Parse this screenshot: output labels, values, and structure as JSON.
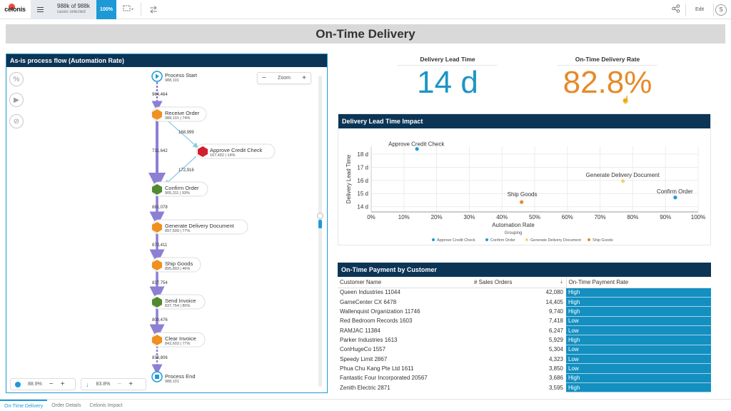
{
  "topbar": {
    "logo_text": "celonis",
    "selection_main": "988k of 988k",
    "selection_sub": "cases selected",
    "selection_pct": "100%",
    "edit_label": "Edit",
    "avatar_initial": "S"
  },
  "page_title": "On-Time Delivery",
  "flow": {
    "header": "As-is process flow (Automation Rate)",
    "zoom_label": "Zoom",
    "zoom_minus": "−",
    "zoom_plus": "+",
    "nodes": [
      {
        "name": "Process Start",
        "sub": "988,101",
        "shape": "start",
        "color": "#1d9ad6"
      },
      {
        "name": "Receive Order",
        "sub": "988,101 | 74%",
        "shape": "hex",
        "color": "#f0901e"
      },
      {
        "name": "Approve Credit Check",
        "sub": "167,492 | 14%",
        "shape": "hex",
        "color": "#d0202e"
      },
      {
        "name": "Confirm Order",
        "sub": "905,311 | 93%",
        "shape": "hex",
        "color": "#4f8a2f"
      },
      {
        "name": "Generate Delivery Document",
        "sub": "897,509 | 77%",
        "shape": "hex",
        "color": "#f0901e"
      },
      {
        "name": "Ship Goods",
        "sub": "895,893 | 46%",
        "shape": "hex",
        "color": "#f0901e"
      },
      {
        "name": "Send Invoice",
        "sub": "837,754 | 80%",
        "shape": "hex",
        "color": "#4f8a2f"
      },
      {
        "name": "Clear Invoice",
        "sub": "842,603 | 77%",
        "shape": "hex",
        "color": "#f0901e"
      },
      {
        "name": "Process End",
        "sub": "988,101",
        "shape": "end",
        "color": "#1d9ad6"
      }
    ],
    "edges": [
      "964,464",
      "168,999",
      "731,642",
      "172,916",
      "881,078",
      "873,411",
      "837,754",
      "800,476",
      "838,806"
    ],
    "bottom_left_value": "88.9%",
    "bottom_right_value": "83.8%"
  },
  "kpis": {
    "lead_label": "Delivery Lead Time",
    "lead_value": "14 d",
    "otd_label": "On-Time Delivery Rate",
    "otd_value": "82.8%"
  },
  "scatter": {
    "header": "Delivery Lead Time Impact",
    "grouping_label": "Grouping"
  },
  "chart_data": {
    "type": "scatter",
    "title": "Delivery Lead Time Impact",
    "xlabel": "Automation Rate",
    "ylabel": "Delivery Lead Time",
    "xlim": [
      0,
      100
    ],
    "ylim": [
      13.6,
      18.6
    ],
    "x_ticks": [
      "0%",
      "10%",
      "20%",
      "30%",
      "40%",
      "50%",
      "60%",
      "70%",
      "80%",
      "90%",
      "100%"
    ],
    "y_ticks": [
      "14 d",
      "15 d",
      "16 d",
      "17 d",
      "18 d"
    ],
    "grid": true,
    "legend_position": "bottom",
    "series": [
      {
        "name": "Approve Credit Check",
        "color": "#1d9ad6",
        "x": 14,
        "y": 18.4
      },
      {
        "name": "Confirm Order",
        "color": "#1d9ad6",
        "x": 93,
        "y": 14.7
      },
      {
        "name": "Generate Delivery Document",
        "color": "#f3d37a",
        "x": 77,
        "y": 15.95
      },
      {
        "name": "Ship Goods",
        "color": "#e68a28",
        "x": 46,
        "y": 14.35
      }
    ]
  },
  "table": {
    "header": "On-Time Payment by Customer",
    "columns": [
      "Customer Name",
      "# Sales Orders",
      "On-Time Payment Rate"
    ],
    "rows": [
      [
        "Queen Industries 11044",
        "42,080",
        "High"
      ],
      [
        "GameCenter CX 6478",
        "14,405",
        "High"
      ],
      [
        "Wallenquist Organization 11746",
        "9,740",
        "High"
      ],
      [
        "Red Bedroom Records 1603",
        "7,418",
        "Low"
      ],
      [
        "RAMJAC 11384",
        "6,247",
        "Low"
      ],
      [
        "Parker Industries 1613",
        "5,929",
        "High"
      ],
      [
        "ConHugeCo 1557",
        "5,304",
        "Low"
      ],
      [
        "Speedy Limit 2867",
        "4,323",
        "Low"
      ],
      [
        "Phua Chu Kang Pte Ltd 1611",
        "3,850",
        "Low"
      ],
      [
        "Fantastic Four Incorporated 20567",
        "3,686",
        "High"
      ],
      [
        "Zenith Electric 2871",
        "3,595",
        "High"
      ]
    ]
  },
  "tabs": [
    "On-Time Delivery",
    "Order Details",
    "Celonis Impact"
  ]
}
